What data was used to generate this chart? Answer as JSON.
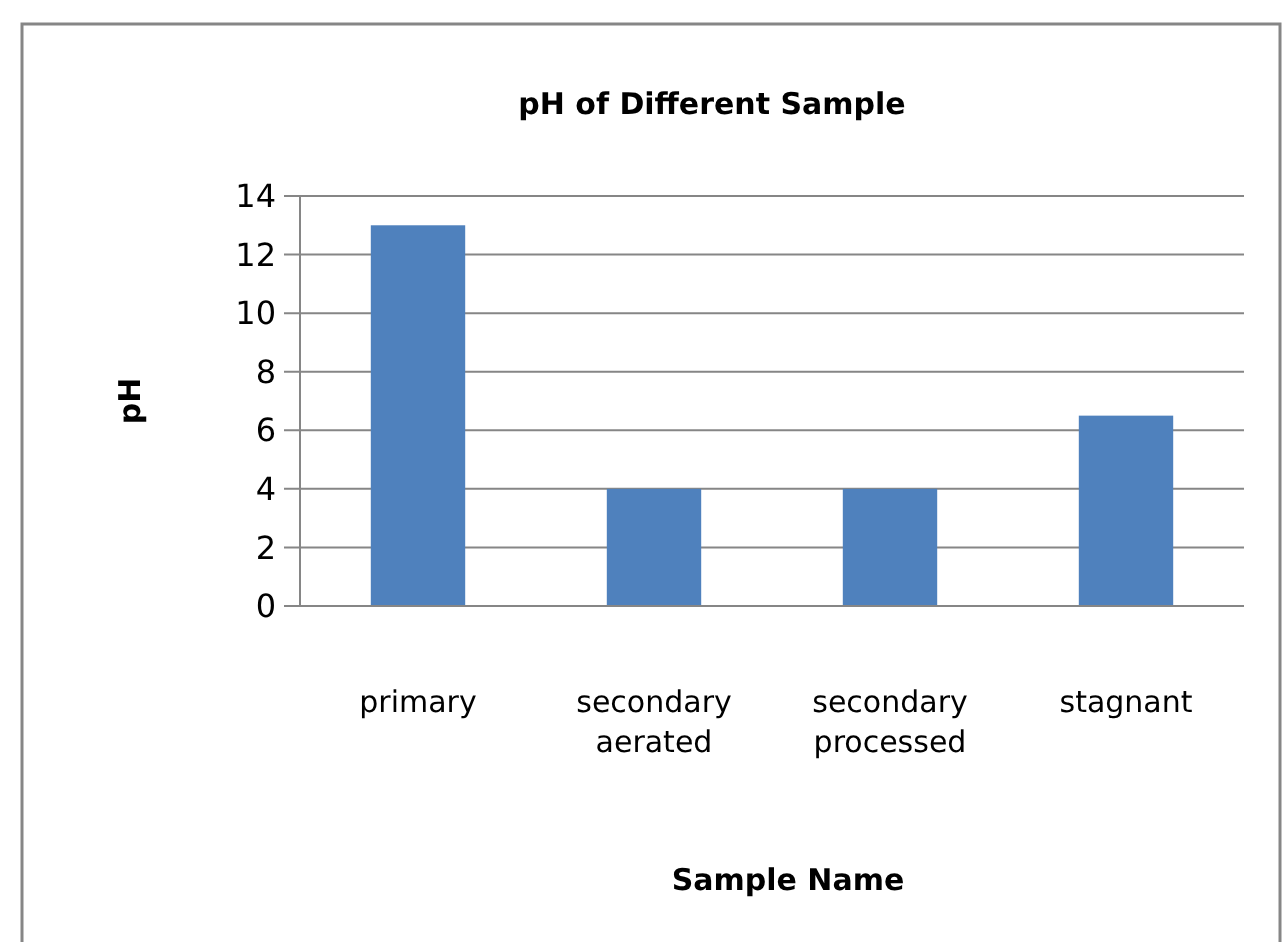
{
  "chart_data": {
    "type": "bar",
    "title": "pH of Different Sample",
    "xlabel": "Sample Name",
    "ylabel": "pH",
    "categories": [
      "primary",
      "secondary aerated",
      "secondary processed",
      "stagnant"
    ],
    "values": [
      13,
      4,
      4,
      6.5
    ],
    "color": "#4f81bd",
    "ylim": [
      0,
      14
    ],
    "yticks": [
      0,
      2,
      4,
      6,
      8,
      10,
      12,
      14
    ],
    "grid": "y"
  }
}
